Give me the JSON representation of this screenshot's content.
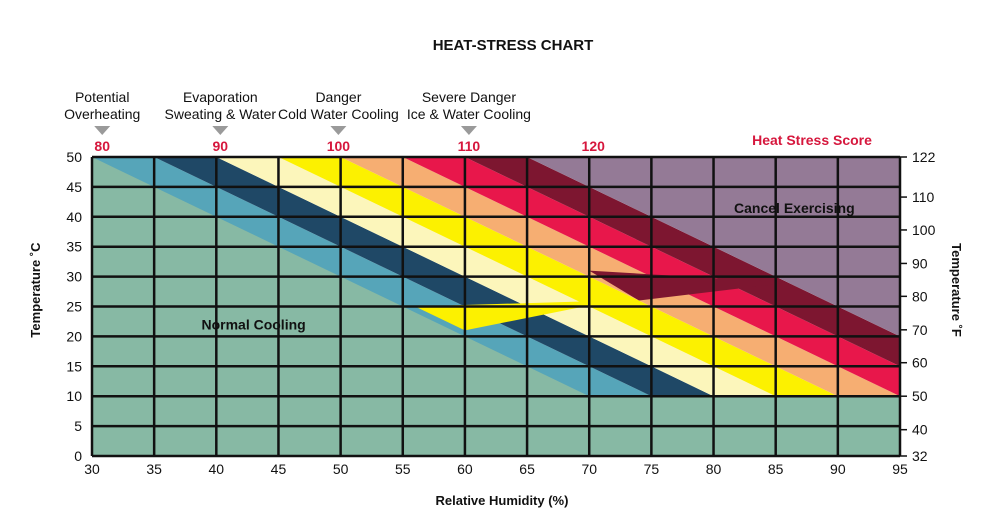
{
  "chart_data": {
    "type": "heatmap",
    "title": "HEAT-STRESS CHART",
    "xlabel": "Relative Humidity (%)",
    "ylabel_left": "Temperature ˚C",
    "ylabel_right": "Temperature ˚F",
    "xlim": [
      30,
      95
    ],
    "ylim": [
      0,
      50
    ],
    "x_ticks": [
      30,
      35,
      40,
      45,
      50,
      55,
      60,
      65,
      70,
      75,
      80,
      85,
      90,
      95
    ],
    "y_ticks": [
      0,
      5,
      10,
      15,
      20,
      25,
      30,
      35,
      40,
      45,
      50
    ],
    "right_ticks": [
      {
        "label": "122",
        "celsius": 50
      },
      {
        "label": "110",
        "celsius": 43.3
      },
      {
        "label": "100",
        "celsius": 37.8
      },
      {
        "label": "90",
        "celsius": 32.2
      },
      {
        "label": "80",
        "celsius": 26.7
      },
      {
        "label": "70",
        "celsius": 21.1
      },
      {
        "label": "60",
        "celsius": 15.6
      },
      {
        "label": "50",
        "celsius": 10
      },
      {
        "label": "40",
        "celsius": 4.4
      },
      {
        "label": "32",
        "celsius": 0
      }
    ],
    "score_legend_title": "Heat Stress Score",
    "score_markers": [
      {
        "label": "80",
        "humidity": 30.5
      },
      {
        "label": "90",
        "humidity": 40
      },
      {
        "label": "100",
        "humidity": 49.5
      },
      {
        "label": "110",
        "humidity": 60
      },
      {
        "label": "120",
        "humidity": 70
      }
    ],
    "categories": [
      {
        "label": "Potential\nOverheating",
        "humidity": 30.5
      },
      {
        "label": "Evaporation\nSweating & Water",
        "humidity": 40
      },
      {
        "label": "Danger\nCold Water Cooling",
        "humidity": 49.5
      },
      {
        "label": "Severe Danger\nIce & Water Cooling",
        "humidity": 60
      }
    ],
    "zone_labels": [
      {
        "text": "Normal Cooling",
        "humidity": 43,
        "celsius": 22
      },
      {
        "text": "Cancel Exercising",
        "humidity": 86.5,
        "celsius": 41.5
      }
    ],
    "bands": [
      {
        "name": "normal",
        "color": "#87b9a4",
        "poly": [
          [
            30,
            0
          ],
          [
            95,
            0
          ],
          [
            95,
            10
          ],
          [
            30,
            10
          ]
        ]
      },
      {
        "name": "normal-upper",
        "color": "#87b9a4",
        "poly": [
          [
            30,
            10
          ],
          [
            95,
            10
          ],
          [
            75,
            10
          ],
          [
            30,
            50
          ]
        ]
      },
      {
        "name": "light-blue",
        "color": "#56a5b9",
        "poly": [
          [
            30,
            50
          ],
          [
            35,
            50
          ],
          [
            75,
            10
          ],
          [
            70,
            10
          ]
        ]
      },
      {
        "name": "dark-navy",
        "color": "#1f4866",
        "poly": [
          [
            35,
            50
          ],
          [
            40,
            50
          ],
          [
            80,
            10
          ],
          [
            75,
            10
          ]
        ]
      },
      {
        "name": "cream",
        "color": "#fcf6bb",
        "poly": [
          [
            40,
            50
          ],
          [
            45,
            50
          ],
          [
            85,
            10
          ],
          [
            80,
            10
          ]
        ]
      },
      {
        "name": "yellow",
        "color": "#fcf100",
        "poly": [
          [
            45,
            50
          ],
          [
            50,
            50
          ],
          [
            90,
            10
          ],
          [
            85,
            10
          ]
        ]
      },
      {
        "name": "orange",
        "color": "#f6ae72",
        "poly": [
          [
            50,
            50
          ],
          [
            55,
            50
          ],
          [
            95,
            10
          ],
          [
            90,
            10
          ]
        ]
      },
      {
        "name": "red",
        "color": "#e8174b",
        "poly": [
          [
            55,
            50
          ],
          [
            60,
            50
          ],
          [
            95,
            15
          ],
          [
            95,
            10
          ]
        ]
      },
      {
        "name": "maroon",
        "color": "#7d1630",
        "poly": [
          [
            60,
            50
          ],
          [
            65,
            50
          ],
          [
            95,
            20
          ],
          [
            95,
            15
          ]
        ]
      },
      {
        "name": "mauve",
        "color": "#947a96",
        "poly": [
          [
            65,
            50
          ],
          [
            95,
            50
          ],
          [
            95,
            20
          ]
        ]
      },
      {
        "name": "maroon-spike",
        "color": "#7d1630",
        "poly": [
          [
            70,
            31
          ],
          [
            86,
            29
          ],
          [
            74,
            26
          ]
        ]
      },
      {
        "name": "yellow-spike",
        "color": "#fcf100",
        "poly": [
          [
            56,
            25
          ],
          [
            72,
            26
          ],
          [
            60,
            21
          ]
        ]
      }
    ]
  }
}
